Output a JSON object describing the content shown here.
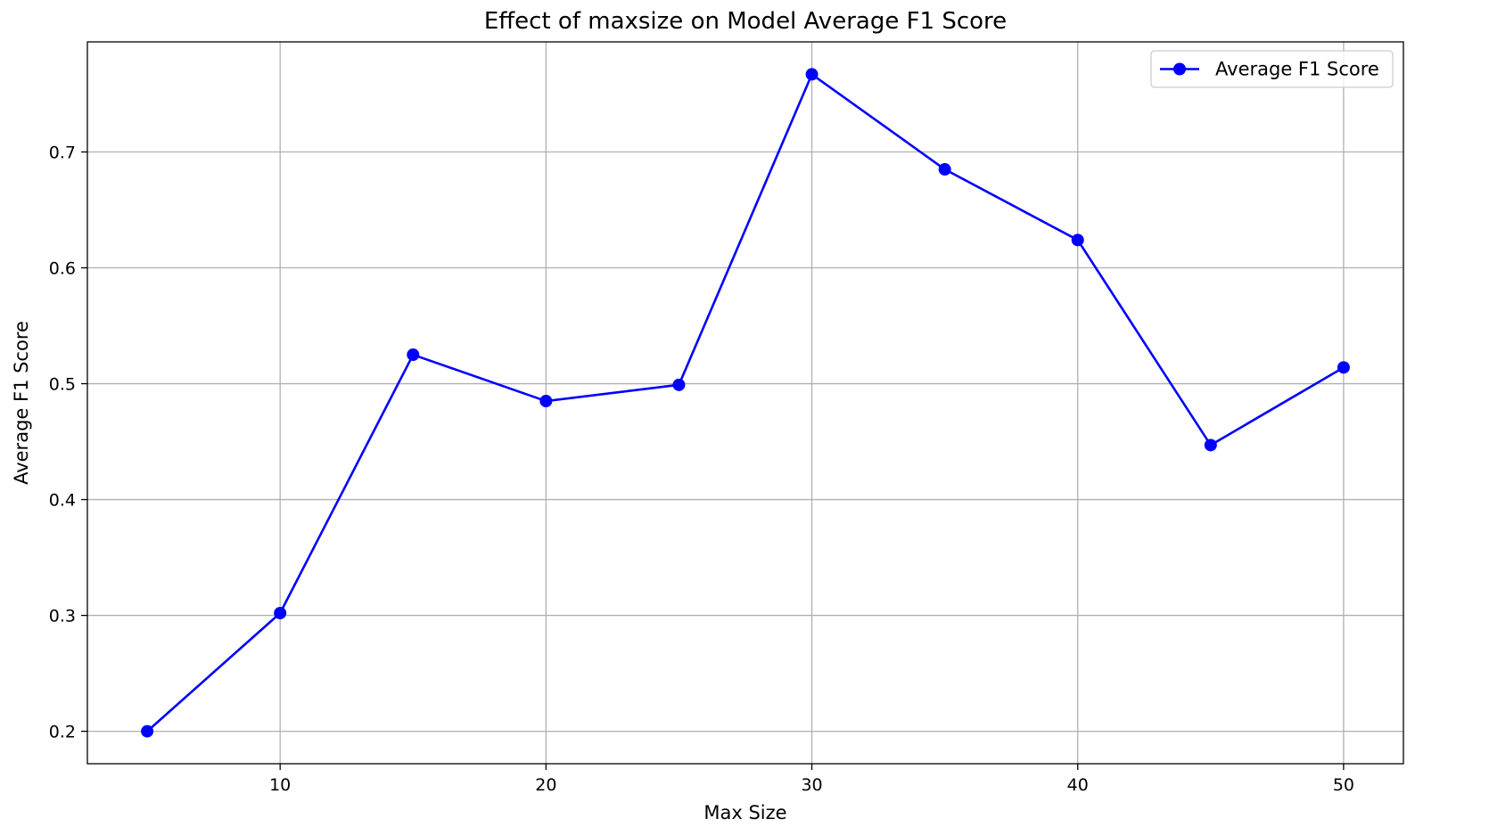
{
  "chart_data": {
    "type": "line",
    "title": "Effect of maxsize on Model Average F1 Score",
    "xlabel": "Max Size",
    "ylabel": "Average F1 Score",
    "xlim": [
      2.75,
      52.25
    ],
    "ylim": [
      0.172,
      0.795
    ],
    "xticks": [
      10,
      20,
      30,
      40,
      50
    ],
    "yticks": [
      0.2,
      0.3,
      0.4,
      0.5,
      0.6,
      0.7
    ],
    "grid": true,
    "legend": {
      "position": "top-right"
    },
    "x": [
      5,
      10,
      15,
      20,
      25,
      30,
      35,
      40,
      45,
      50
    ],
    "series": [
      {
        "name": "Average F1 Score",
        "color": "#0000ff",
        "marker": "circle",
        "values": [
          0.2,
          0.302,
          0.525,
          0.485,
          0.499,
          0.767,
          0.685,
          0.624,
          0.447,
          0.514
        ]
      }
    ]
  }
}
